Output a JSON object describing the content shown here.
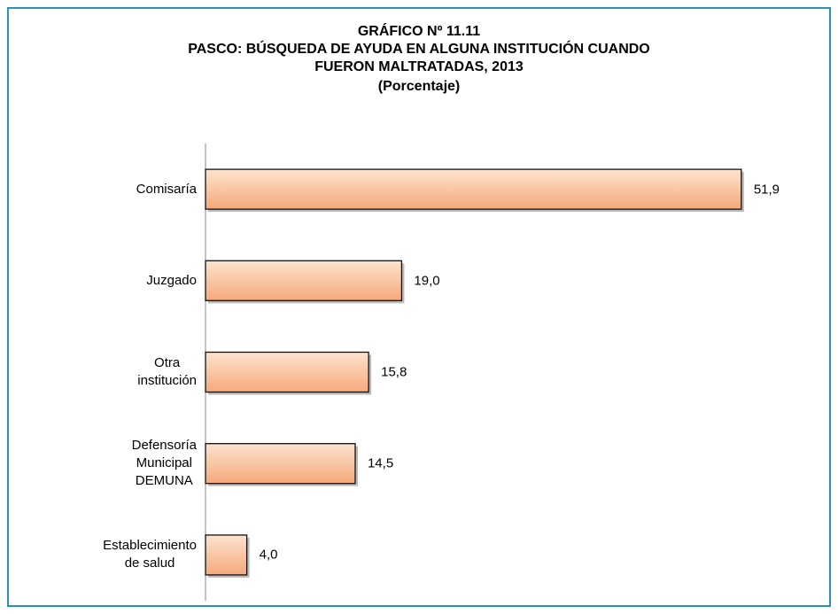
{
  "chart_data": {
    "type": "bar",
    "orientation": "horizontal",
    "title": [
      "GRÁFICO Nº 11.11",
      "PASCO: BÚSQUEDA DE AYUDA EN ALGUNA INSTITUCIÓN CUANDO",
      "FUERON MALTRATADAS, 2013",
      "(Porcentaje)"
    ],
    "categories": [
      "Comisaría",
      "Juzgado",
      "Otra\ninstitución",
      "Defensoría\nMunicipal\nDEMUNA",
      "Establecimiento\nde salud"
    ],
    "values": [
      51.9,
      19.0,
      15.8,
      14.5,
      4.0
    ],
    "value_labels": [
      "51,9",
      "19,0",
      "15,8",
      "14,5",
      "4,0"
    ],
    "color": "#f8bb91",
    "xlim": [
      0,
      52
    ]
  }
}
